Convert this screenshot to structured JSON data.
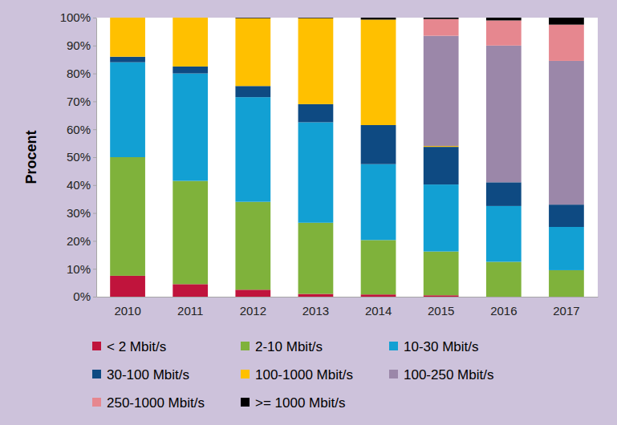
{
  "chart_data": {
    "type": "bar",
    "stacked": true,
    "y_label": "Procent",
    "categories": [
      "2010",
      "2011",
      "2012",
      "2013",
      "2014",
      "2015",
      "2016",
      "2017"
    ],
    "series": [
      {
        "name": "< 2 Mbit/s",
        "color": "#c0143c",
        "values": [
          7.5,
          4.5,
          2.5,
          1,
          0.8,
          0.5,
          0,
          0
        ]
      },
      {
        "name": "2-10 Mbit/s",
        "color": "#7fb23b",
        "values": [
          42.5,
          37,
          31.5,
          25.5,
          19.5,
          15.7,
          12.5,
          9.5
        ]
      },
      {
        "name": "10-30 Mbit/s",
        "color": "#12a0d3",
        "values": [
          34,
          38.5,
          37.5,
          36,
          27.2,
          24,
          20,
          15.5
        ]
      },
      {
        "name": "30-100 Mbit/s",
        "color": "#0e4a82",
        "values": [
          2,
          2.5,
          4,
          6.5,
          14,
          13.5,
          8.5,
          8
        ]
      },
      {
        "name": "100-1000 Mbit/s",
        "color": "#ffc000",
        "values": [
          14,
          17.5,
          24.3,
          30.8,
          37.8,
          0.3,
          0,
          0
        ]
      },
      {
        "name": "100-250 Mbit/s",
        "color": "#9b87a9",
        "values": [
          0,
          0,
          0,
          0,
          0,
          39.5,
          49,
          51.5
        ]
      },
      {
        "name": "250-1000 Mbit/s",
        "color": "#e6878f",
        "values": [
          0,
          0,
          0,
          0,
          0,
          6,
          9,
          13
        ]
      },
      {
        "name": ">= 1000 Mbit/s",
        "color": "#000000",
        "values": [
          0,
          0,
          0.2,
          0.2,
          0.7,
          0.5,
          1,
          2.5
        ]
      }
    ],
    "ylim": [
      0,
      100
    ],
    "yticks": [
      {
        "value": 0,
        "label": "0%"
      },
      {
        "value": 10,
        "label": "10%"
      },
      {
        "value": 20,
        "label": "20%"
      },
      {
        "value": 30,
        "label": "30%"
      },
      {
        "value": 40,
        "label": "40%"
      },
      {
        "value": 50,
        "label": "50%"
      },
      {
        "value": 60,
        "label": "60%"
      },
      {
        "value": 70,
        "label": "70%"
      },
      {
        "value": 80,
        "label": "80%"
      },
      {
        "value": 90,
        "label": "90%"
      },
      {
        "value": 100,
        "label": "100%"
      }
    ],
    "grid": false,
    "legend": "bottom"
  }
}
